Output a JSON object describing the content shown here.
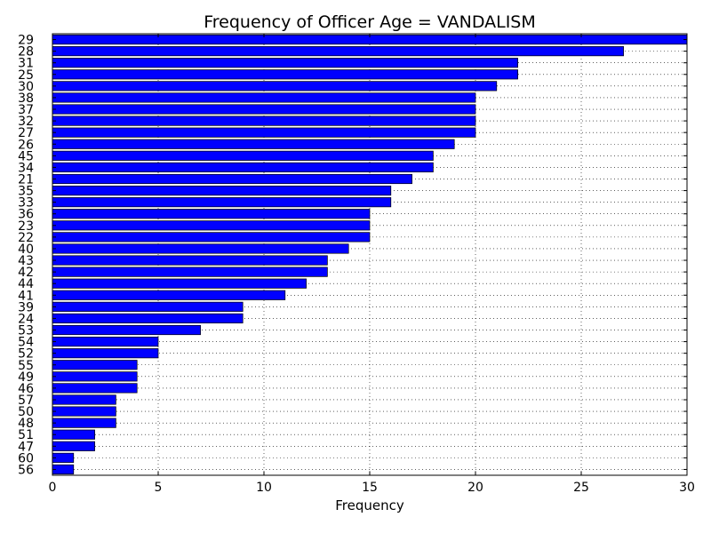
{
  "chart_data": {
    "type": "bar",
    "orientation": "horizontal",
    "title": "Frequency of Officer Age = VANDALISM",
    "xlabel": "Frequency",
    "ylabel": "",
    "xlim": [
      0,
      30
    ],
    "xticks": [
      "0",
      "5",
      "10",
      "15",
      "20",
      "25",
      "30"
    ],
    "grid": true,
    "bar_color": "#0000ff",
    "categories": [
      "29",
      "28",
      "31",
      "25",
      "30",
      "38",
      "37",
      "32",
      "27",
      "26",
      "45",
      "34",
      "21",
      "35",
      "33",
      "36",
      "23",
      "22",
      "40",
      "43",
      "42",
      "44",
      "41",
      "39",
      "24",
      "53",
      "54",
      "52",
      "55",
      "49",
      "46",
      "57",
      "50",
      "48",
      "51",
      "47",
      "60",
      "56"
    ],
    "values": [
      30,
      27,
      22,
      22,
      21,
      20,
      20,
      20,
      20,
      19,
      18,
      18,
      17,
      16,
      16,
      15,
      15,
      15,
      14,
      13,
      13,
      12,
      11,
      9,
      9,
      7,
      5,
      5,
      4,
      4,
      4,
      3,
      3,
      3,
      2,
      2,
      1,
      1
    ]
  }
}
